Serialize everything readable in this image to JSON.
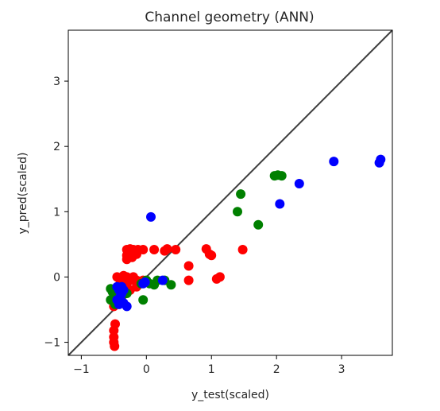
{
  "chart_data": {
    "type": "scatter",
    "title": "Channel geometry (ANN)",
    "xlabel": "y_test(scaled)",
    "ylabel": "y_pred(scaled)",
    "xlim": [
      -1.2,
      3.78
    ],
    "ylim": [
      -1.2,
      3.78
    ],
    "xticks": [
      -1,
      0,
      1,
      2,
      3
    ],
    "yticks": [
      -1,
      0,
      1,
      2,
      3
    ],
    "grid": false,
    "reference_line": {
      "from": [
        -1.2,
        -1.2
      ],
      "to": [
        3.78,
        3.78
      ],
      "color": "#3f3f3f"
    },
    "series": [
      {
        "color": "#ff0000",
        "points": [
          [
            -0.48,
            -0.72
          ],
          [
            -0.5,
            -0.82
          ],
          [
            -0.5,
            -0.92
          ],
          [
            -0.5,
            -1.0
          ],
          [
            -0.49,
            -1.06
          ],
          [
            -0.5,
            -0.45
          ],
          [
            -0.45,
            -0.35
          ],
          [
            -0.42,
            -0.28
          ],
          [
            -0.38,
            -0.22
          ],
          [
            -0.35,
            -0.15
          ],
          [
            -0.3,
            -0.1
          ],
          [
            -0.25,
            -0.05
          ],
          [
            -0.4,
            -0.05
          ],
          [
            -0.35,
            -0.02
          ],
          [
            -0.3,
            0.0
          ],
          [
            -0.2,
            0.0
          ],
          [
            -0.15,
            -0.05
          ],
          [
            -0.1,
            -0.1
          ],
          [
            -0.25,
            -0.2
          ],
          [
            -0.15,
            -0.15
          ],
          [
            -0.45,
            0.0
          ],
          [
            -0.35,
            0.02
          ],
          [
            -0.05,
            -0.05
          ],
          [
            -0.3,
            0.27
          ],
          [
            -0.3,
            0.33
          ],
          [
            -0.28,
            0.38
          ],
          [
            -0.3,
            0.42
          ],
          [
            -0.25,
            0.43
          ],
          [
            -0.2,
            0.42
          ],
          [
            -0.13,
            0.42
          ],
          [
            -0.05,
            0.42
          ],
          [
            0.12,
            0.42
          ],
          [
            0.28,
            0.4
          ],
          [
            0.32,
            0.43
          ],
          [
            0.45,
            0.42
          ],
          [
            -0.22,
            0.3
          ],
          [
            -0.15,
            0.35
          ],
          [
            0.65,
            0.17
          ],
          [
            0.65,
            -0.05
          ],
          [
            0.92,
            0.43
          ],
          [
            0.97,
            0.35
          ],
          [
            1.0,
            0.33
          ],
          [
            1.08,
            -0.03
          ],
          [
            1.13,
            0.0
          ],
          [
            1.48,
            0.42
          ]
        ]
      },
      {
        "color": "#008000",
        "points": [
          [
            -0.55,
            -0.18
          ],
          [
            -0.52,
            -0.23
          ],
          [
            -0.55,
            -0.35
          ],
          [
            -0.48,
            -0.42
          ],
          [
            -0.5,
            -0.3
          ],
          [
            -0.45,
            -0.18
          ],
          [
            -0.4,
            -0.28
          ],
          [
            -0.35,
            -0.22
          ],
          [
            -0.3,
            -0.25
          ],
          [
            -0.05,
            -0.35
          ],
          [
            -0.08,
            -0.1
          ],
          [
            0.0,
            -0.05
          ],
          [
            0.05,
            -0.1
          ],
          [
            0.12,
            -0.12
          ],
          [
            0.17,
            -0.05
          ],
          [
            0.38,
            -0.12
          ],
          [
            0.28,
            -0.05
          ],
          [
            1.4,
            1.0
          ],
          [
            1.45,
            1.27
          ],
          [
            1.72,
            0.8
          ],
          [
            1.97,
            1.55
          ],
          [
            2.02,
            1.56
          ],
          [
            2.08,
            1.55
          ]
        ]
      },
      {
        "color": "#0000ff",
        "points": [
          [
            -0.45,
            -0.15
          ],
          [
            -0.42,
            -0.2
          ],
          [
            -0.38,
            -0.15
          ],
          [
            -0.35,
            -0.2
          ],
          [
            -0.4,
            -0.3
          ],
          [
            -0.45,
            -0.35
          ],
          [
            -0.42,
            -0.42
          ],
          [
            -0.35,
            -0.4
          ],
          [
            -0.3,
            -0.45
          ],
          [
            -0.38,
            -0.25
          ],
          [
            -0.05,
            -0.1
          ],
          [
            -0.02,
            -0.08
          ],
          [
            0.25,
            -0.05
          ],
          [
            0.07,
            0.92
          ],
          [
            2.05,
            1.12
          ],
          [
            2.35,
            1.43
          ],
          [
            2.88,
            1.77
          ],
          [
            3.58,
            1.75
          ],
          [
            3.6,
            1.8
          ]
        ]
      }
    ]
  }
}
